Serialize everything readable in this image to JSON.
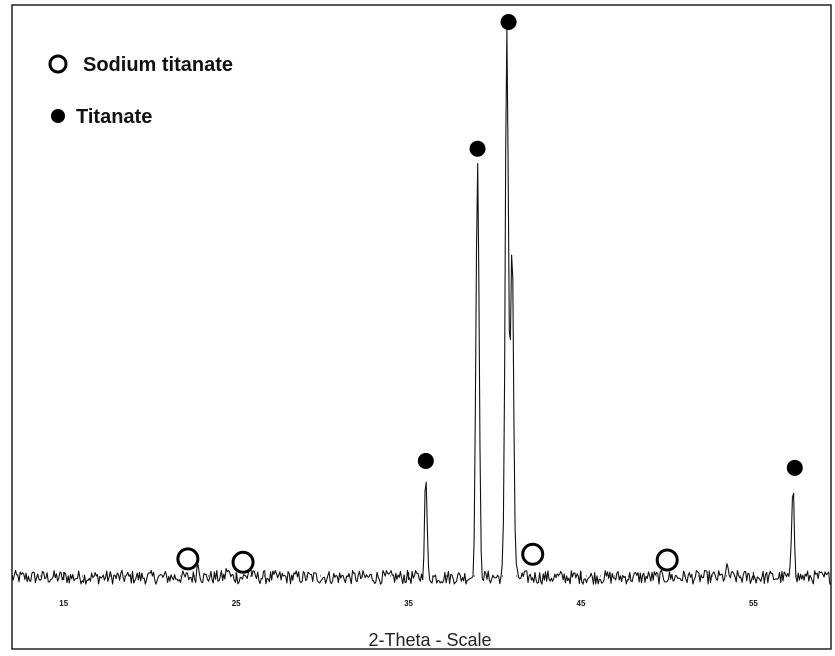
{
  "chart_data": {
    "type": "line",
    "title": "",
    "xlabel": "2-Theta - Scale",
    "ylabel": "",
    "xlim": [
      12,
      59.5
    ],
    "ylim": [
      0,
      100
    ],
    "grid": false,
    "legend": {
      "placement": "top-left",
      "entries": [
        {
          "label": "Sodium titanate",
          "marker": "open-circle"
        },
        {
          "label": "Titanate",
          "marker": "filled-circle"
        }
      ]
    },
    "x_ticks": [
      {
        "value": 15,
        "label": "15"
      },
      {
        "value": 25,
        "label": "25"
      },
      {
        "value": 35,
        "label": "35"
      },
      {
        "value": 45,
        "label": "45"
      },
      {
        "value": 55,
        "label": "55"
      }
    ],
    "series": [
      {
        "marker_style": "line",
        "baseline": 3.6,
        "noise_amplitude": 1.2,
        "peaks": [
          {
            "x": 22.8,
            "height": 2.5
          },
          {
            "x": 24.5,
            "height": 1.5
          },
          {
            "x": 25.8,
            "height": 2.0
          },
          {
            "x": 36.0,
            "height": 17.5
          },
          {
            "x": 39.0,
            "height": 72.0
          },
          {
            "x": 40.7,
            "height": 95.0
          },
          {
            "x": 41.0,
            "height": 57.0
          },
          {
            "x": 53.5,
            "height": 1.5
          },
          {
            "x": 57.3,
            "height": 16.5
          }
        ]
      }
    ],
    "annotations": [
      {
        "x": 22.2,
        "y": 6.8,
        "marker": "open-circle",
        "phase": "Sodium titanate"
      },
      {
        "x": 25.4,
        "y": 6.2,
        "marker": "open-circle",
        "phase": "Sodium titanate"
      },
      {
        "x": 42.2,
        "y": 7.6,
        "marker": "open-circle",
        "phase": "Sodium titanate"
      },
      {
        "x": 50.0,
        "y": 6.6,
        "marker": "open-circle",
        "phase": "Sodium titanate"
      },
      {
        "x": 36.0,
        "y": 23.8,
        "marker": "filled-circle",
        "phase": "Titanate"
      },
      {
        "x": 39.0,
        "y": 78.0,
        "marker": "filled-circle",
        "phase": "Titanate"
      },
      {
        "x": 40.8,
        "y": 100.0,
        "marker": "filled-circle",
        "phase": "Titanate"
      },
      {
        "x": 57.4,
        "y": 22.6,
        "marker": "filled-circle",
        "phase": "Titanate"
      }
    ]
  }
}
